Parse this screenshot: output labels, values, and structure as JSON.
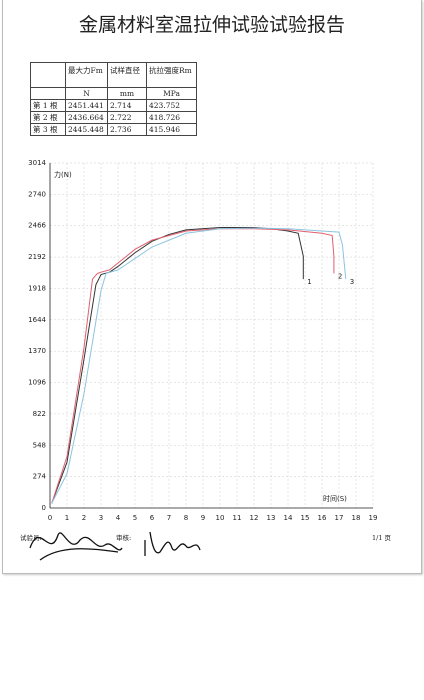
{
  "title": "金属材料室温拉伸试验试验报告",
  "table": {
    "header": [
      "最大力Fm",
      "试样直径",
      "抗拉强度Rm"
    ],
    "units": [
      "N",
      "mm",
      "MPa"
    ],
    "rows": [
      [
        "第 1 根",
        "2451.441",
        "2.714",
        "423.752"
      ],
      [
        "第 2 根",
        "2436.664",
        "2.722",
        "418.726"
      ],
      [
        "第 3 根",
        "2445.448",
        "2.736",
        "415.946"
      ]
    ]
  },
  "footer": {
    "tester": "试验员:",
    "reviewer": "审核:",
    "page": "1/1 页"
  },
  "chart_data": {
    "type": "line",
    "y_label": "力(N)",
    "x_label": "时间(S)",
    "xlim": [
      0,
      19
    ],
    "xticks": [
      0,
      1,
      2,
      3,
      4,
      5,
      6,
      7,
      8,
      9,
      10,
      11,
      12,
      13,
      14,
      15,
      16,
      17,
      18,
      19
    ],
    "ylim": [
      0,
      3014
    ],
    "yticks": [
      0,
      274,
      548,
      822,
      1096,
      1370,
      1644,
      1918,
      2192,
      2466,
      2740,
      3014
    ],
    "grid": true,
    "series": [
      {
        "name": "1",
        "color": "#333333",
        "x": [
          0.1,
          1,
          2,
          2.7,
          3,
          3.5,
          4,
          5,
          6,
          7,
          8,
          10,
          12,
          13,
          14,
          14.6,
          14.9,
          14.9
        ],
        "values": [
          40,
          400,
          1300,
          1950,
          2040,
          2060,
          2110,
          2230,
          2330,
          2390,
          2430,
          2450,
          2450,
          2440,
          2420,
          2400,
          2200,
          2000
        ]
      },
      {
        "name": "2",
        "color": "#e06070",
        "x": [
          0.1,
          1,
          2,
          2.5,
          2.8,
          3,
          3.5,
          4,
          5,
          6,
          8,
          10,
          12,
          14,
          16,
          16.6,
          16.7,
          16.7
        ],
        "values": [
          40,
          450,
          1400,
          2000,
          2050,
          2060,
          2080,
          2140,
          2260,
          2340,
          2420,
          2440,
          2440,
          2430,
          2400,
          2380,
          2200,
          2050
        ]
      },
      {
        "name": "3",
        "color": "#8cc4e0",
        "x": [
          0.1,
          1,
          2,
          3,
          3.3,
          4,
          5,
          6,
          8,
          10,
          12,
          14,
          16,
          17,
          17.2,
          17.4
        ],
        "values": [
          40,
          300,
          1000,
          1900,
          2050,
          2080,
          2180,
          2280,
          2400,
          2440,
          2445,
          2440,
          2420,
          2410,
          2300,
          2000
        ]
      }
    ]
  }
}
